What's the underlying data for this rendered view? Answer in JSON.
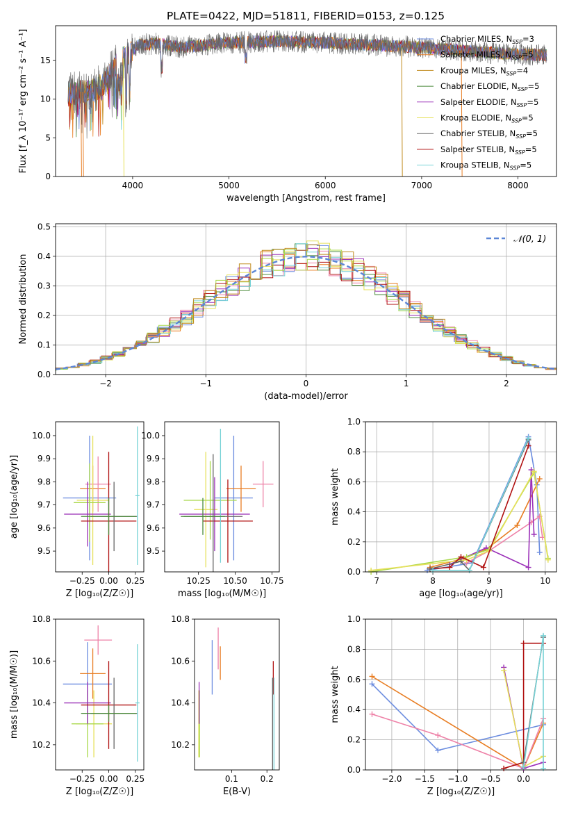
{
  "figure_title": "PLATE=0422, MJD=51811, FIBERID=0153, z=0.125",
  "palette": {
    "Chabrier MILES": "#6b8cdf",
    "Salpeter MILES": "#e87d22",
    "Kroupa MILES": "#c08a1c",
    "Chabrier ELODIE": "#4a8a3a",
    "Salpeter ELODIE": "#9b30b8",
    "Kroupa ELODIE": "#e6e05a",
    "Chabrier STELIB": "#666666",
    "Salpeter STELIB": "#b01010",
    "Kroupa STELIB": "#77d2d6",
    "extra_pink": "#ee82a8",
    "extra_lime": "#a8d84a",
    "gaussian": "#5b86d6"
  },
  "chart_data": [
    {
      "type": "line",
      "title": "PLATE=0422, MJD=51811, FIBERID=0153, z=0.125",
      "xlabel": "wavelength [Angstrom, rest frame]",
      "ylabel": "Flux [f_λ 10⁻¹⁷ erg cm⁻² s⁻¹ A⁻¹]",
      "xlim": [
        3200,
        8400
      ],
      "ylim": [
        0,
        19.5
      ],
      "xticks": [
        "4000",
        "5000",
        "6000",
        "7000",
        "8000"
      ],
      "yticks": [
        "0",
        "5",
        "10",
        "15"
      ],
      "legend_position": "right",
      "series": [
        {
          "name": "Chabrier MILES, N_SSP=3",
          "label_main": "Chabrier MILES, N",
          "label_sub": "SSP",
          "label_end": "=3"
        },
        {
          "name": "Salpeter MILES, N_SSP=5",
          "label_main": "Salpeter MILES, N",
          "label_sub": "SSP",
          "label_end": "=5"
        },
        {
          "name": "Kroupa MILES, N_SSP=4",
          "label_main": "Kroupa MILES, N",
          "label_sub": "SSP",
          "label_end": "=4"
        },
        {
          "name": "Chabrier ELODIE, N_SSP=5",
          "label_main": "Chabrier ELODIE, N",
          "label_sub": "SSP",
          "label_end": "=5"
        },
        {
          "name": "Salpeter ELODIE, N_SSP=5",
          "label_main": "Salpeter ELODIE, N",
          "label_sub": "SSP",
          "label_end": "=5"
        },
        {
          "name": "Kroupa ELODIE, N_SSP=5",
          "label_main": "Kroupa ELODIE, N",
          "label_sub": "SSP",
          "label_end": "=5"
        },
        {
          "name": "Chabrier STELIB, N_SSP=5",
          "label_main": "Chabrier STELIB, N",
          "label_sub": "SSP",
          "label_end": "=5"
        },
        {
          "name": "Salpeter STELIB, N_SSP=5",
          "label_main": "Salpeter STELIB, N",
          "label_sub": "SSP",
          "label_end": "=5"
        },
        {
          "name": "Kroupa STELIB, N_SSP=5",
          "label_main": "Kroupa STELIB, N",
          "label_sub": "SSP",
          "label_end": "=5"
        }
      ],
      "continuum": {
        "x": [
          3330,
          3450,
          3560,
          3700,
          3850,
          3950,
          4050,
          4250,
          4500,
          5000,
          5500,
          6000,
          6500,
          7000,
          7500,
          8000,
          8300
        ],
        "y": [
          10.5,
          11.0,
          10.8,
          12.0,
          14.8,
          15.6,
          17.0,
          17.2,
          16.7,
          17.3,
          17.5,
          17.3,
          17.0,
          16.7,
          16.2,
          15.8,
          15.7
        ]
      },
      "dropouts": [
        {
          "color": "Salpeter MILES",
          "x": 3470
        },
        {
          "color": "Salpeter MILES",
          "x": 3490
        },
        {
          "color": "Kroupa ELODIE",
          "x": 3910
        },
        {
          "color": "Kroupa MILES",
          "x": 6800
        },
        {
          "color": "Salpeter MILES",
          "x": 7420
        }
      ]
    },
    {
      "type": "bar",
      "xlabel": "(data-model)/error",
      "ylabel": "Normed distribution",
      "xlim": [
        -2.5,
        2.5
      ],
      "ylim": [
        0,
        0.51
      ],
      "xticks": [
        "−2",
        "−1",
        "0",
        "1",
        "2"
      ],
      "yticks": [
        "0.0",
        "0.1",
        "0.2",
        "0.3",
        "0.4",
        "0.5"
      ],
      "grid": true,
      "legend_position": "top-right",
      "legend_label": "𝒩(0, 1)",
      "bin_width": 0.114,
      "reference_curve": {
        "name": "gaussian",
        "mean": 0,
        "sigma": 1
      }
    },
    {
      "type": "scatter",
      "xlabel": "Z [log₁₀(Z/Z☉)]",
      "ylabel": "age  [log₁₀(age/yr)]",
      "xlim": [
        -0.5,
        0.33
      ],
      "ylim": [
        9.41,
        10.06
      ],
      "xticks": [
        "−0.25",
        "0.00",
        "0.25"
      ],
      "yticks": [
        "9.5",
        "9.6",
        "9.7",
        "9.8",
        "9.9",
        "10.0"
      ],
      "points": [
        {
          "model": "Chabrier MILES",
          "x": -0.18,
          "xerr": 0.25,
          "y": 9.73,
          "yerr": 0.27
        },
        {
          "model": "Salpeter MILES",
          "x": -0.15,
          "xerr": 0.12,
          "y": 9.77,
          "yerr": 0.1
        },
        {
          "model": "extra_pink",
          "x": -0.1,
          "xerr": 0.12,
          "y": 9.79,
          "yerr": 0.12
        },
        {
          "model": "Kroupa ELODIE",
          "x": -0.15,
          "xerr": 0.15,
          "y": 9.72,
          "yerr": 0.28
        },
        {
          "model": "extra_lime",
          "x": -0.18,
          "xerr": 0.15,
          "y": 9.71,
          "yerr": 0.17
        },
        {
          "model": "Salpeter ELODIE",
          "x": -0.2,
          "xerr": 0.22,
          "y": 9.66,
          "yerr": 0.14
        },
        {
          "model": "Salpeter STELIB",
          "x": 0.0,
          "xerr": 0.26,
          "y": 9.63,
          "yerr": 0.3
        },
        {
          "model": "Chabrier STELIB",
          "x": 0.05,
          "xerr": 0.22,
          "y": 9.65,
          "yerr": 0.15
        },
        {
          "model": "Kroupa STELIB",
          "x": 0.27,
          "xerr": 0.02,
          "y": 9.74,
          "yerr": 0.3
        },
        {
          "model": "Chabrier ELODIE",
          "x": 0.0,
          "xerr": 0.26,
          "y": 9.65,
          "yerr": 0.08
        }
      ]
    },
    {
      "type": "scatter",
      "xlabel": "mass [log₁₀(M/M☉)]",
      "ylabel": "",
      "xlim": [
        10.02,
        10.8
      ],
      "ylim": [
        9.41,
        10.06
      ],
      "xticks": [
        "10.25",
        "10.50",
        "10.75"
      ],
      "yticks": [
        "9.5",
        "9.6",
        "9.7",
        "9.8",
        "9.9",
        "10.0"
      ],
      "points": [
        {
          "model": "Chabrier MILES",
          "x": 10.49,
          "xerr": 0.13,
          "y": 9.73,
          "yerr": 0.27
        },
        {
          "model": "Salpeter MILES",
          "x": 10.54,
          "xerr": 0.1,
          "y": 9.77,
          "yerr": 0.1
        },
        {
          "model": "extra_pink",
          "x": 10.69,
          "xerr": 0.07,
          "y": 9.79,
          "yerr": 0.1
        },
        {
          "model": "Kroupa ELODIE",
          "x": 10.3,
          "xerr": 0.08,
          "y": 9.68,
          "yerr": 0.25
        },
        {
          "model": "extra_lime",
          "x": 10.33,
          "xerr": 0.18,
          "y": 9.72,
          "yerr": 0.17
        },
        {
          "model": "Salpeter ELODIE",
          "x": 10.36,
          "xerr": 0.24,
          "y": 9.66,
          "yerr": 0.16
        },
        {
          "model": "Salpeter STELIB",
          "x": 10.45,
          "xerr": 0.17,
          "y": 9.63,
          "yerr": 0.18
        },
        {
          "model": "Chabrier STELIB",
          "x": 10.35,
          "xerr": 0.2,
          "y": 9.65,
          "yerr": 0.27
        },
        {
          "model": "Kroupa STELIB",
          "x": 10.4,
          "xerr": 0.0,
          "y": 9.74,
          "yerr": 0.29
        },
        {
          "model": "Chabrier ELODIE",
          "x": 10.28,
          "xerr": 0.15,
          "y": 9.65,
          "yerr": 0.08
        }
      ]
    },
    {
      "type": "line",
      "xlabel": "age  [log₁₀(age/yr)]",
      "ylabel": "mass weight",
      "xlim": [
        6.8,
        10.2
      ],
      "ylim": [
        0,
        1.0
      ],
      "xticks": [
        "7",
        "8",
        "9",
        "10"
      ],
      "yticks": [
        "0.0",
        "0.2",
        "0.4",
        "0.6",
        "0.8",
        "1.0"
      ],
      "grid": true,
      "series": [
        {
          "model": "Chabrier MILES",
          "x": [
            7.9,
            8.7,
            9.7,
            9.85,
            9.9
          ],
          "y": [
            0.01,
            0.06,
            0.9,
            0.58,
            0.13
          ]
        },
        {
          "model": "Salpeter MILES",
          "x": [
            7.95,
            8.55,
            8.95,
            9.5,
            9.9
          ],
          "y": [
            0.03,
            0.09,
            0.15,
            0.31,
            0.62
          ]
        },
        {
          "model": "extra_pink",
          "x": [
            8.6,
            9.0,
            9.75,
            9.9,
            9.95
          ],
          "y": [
            0.06,
            0.14,
            0.33,
            0.37,
            0.23
          ]
        },
        {
          "model": "Salpeter ELODIE",
          "x": [
            8.3,
            8.95,
            9.7,
            9.75,
            9.8
          ],
          "y": [
            0.05,
            0.16,
            0.03,
            0.68,
            0.25
          ]
        },
        {
          "model": "extra_lime",
          "x": [
            6.9,
            8.6,
            9.0,
            9.8,
            10.05
          ],
          "y": [
            0.0,
            0.1,
            0.15,
            0.66,
            0.09
          ]
        },
        {
          "model": "Kroupa ELODIE",
          "x": [
            6.9,
            8.6,
            9.0,
            9.8,
            10.05
          ],
          "y": [
            0.01,
            0.08,
            0.14,
            0.67,
            0.08
          ]
        },
        {
          "model": "Salpeter STELIB",
          "x": [
            7.95,
            8.3,
            8.5,
            8.9,
            9.7
          ],
          "y": [
            0.02,
            0.03,
            0.1,
            0.03,
            0.84
          ]
        },
        {
          "model": "Chabrier STELIB",
          "x": [
            7.95,
            8.5,
            8.65,
            9.7
          ],
          "y": [
            0.02,
            0.07,
            0.01,
            0.88
          ]
        },
        {
          "model": "Kroupa STELIB",
          "x": [
            8.0,
            8.65,
            9.7
          ],
          "y": [
            0.01,
            0.01,
            0.89
          ]
        }
      ]
    },
    {
      "type": "scatter",
      "xlabel": "Z [log₁₀(Z/Z☉)]",
      "ylabel": "mass [log₁₀(M/M☉)]",
      "xlim": [
        -0.5,
        0.33
      ],
      "ylim": [
        10.08,
        10.8
      ],
      "xticks": [
        "−0.25",
        "0.00",
        "0.25"
      ],
      "yticks": [
        "10.2",
        "10.4",
        "10.6",
        "10.8"
      ],
      "points": [
        {
          "model": "Chabrier MILES",
          "x": -0.2,
          "xerr": 0.23,
          "y": 10.49,
          "yerr": 0.2
        },
        {
          "model": "Salpeter MILES",
          "x": -0.15,
          "xerr": 0.12,
          "y": 10.54,
          "yerr": 0.12
        },
        {
          "model": "extra_pink",
          "x": -0.1,
          "xerr": 0.13,
          "y": 10.7,
          "yerr": 0.07
        },
        {
          "model": "Kroupa ELODIE",
          "x": -0.14,
          "xerr": 0.17,
          "y": 10.3,
          "yerr": 0.16
        },
        {
          "model": "extra_lime",
          "x": -0.2,
          "xerr": 0.15,
          "y": 10.3,
          "yerr": 0.16
        },
        {
          "model": "Salpeter ELODIE",
          "x": -0.2,
          "xerr": 0.22,
          "y": 10.4,
          "yerr": 0.1
        },
        {
          "model": "Salpeter STELIB",
          "x": 0.0,
          "xerr": 0.26,
          "y": 10.39,
          "yerr": 0.21
        },
        {
          "model": "Chabrier STELIB",
          "x": 0.05,
          "xerr": 0.22,
          "y": 10.35,
          "yerr": 0.17
        },
        {
          "model": "Kroupa STELIB",
          "x": 0.27,
          "xerr": 0.02,
          "y": 10.4,
          "yerr": 0.28
        },
        {
          "model": "Chabrier ELODIE",
          "x": 0.0,
          "xerr": 0.26,
          "y": 10.35,
          "yerr": 0.04
        }
      ]
    },
    {
      "type": "scatter",
      "xlabel": "E(B-V)",
      "ylabel": "",
      "xlim": [
        -0.005,
        0.235
      ],
      "ylim": [
        10.08,
        10.8
      ],
      "xticks": [
        "0.1",
        "0.2"
      ],
      "yticks": [
        "10.2",
        "10.4",
        "10.6",
        "10.8"
      ],
      "points": [
        {
          "model": "Chabrier MILES",
          "y": 10.57,
          "yerr": 0.13,
          "x": 0.045
        },
        {
          "model": "Salpeter MILES",
          "y": 10.59,
          "yerr": 0.08,
          "x": 0.068
        },
        {
          "model": "extra_pink",
          "y": 10.66,
          "yerr": 0.1,
          "x": 0.062
        },
        {
          "model": "Kroupa ELODIE",
          "y": 10.3,
          "yerr": 0.16,
          "x": 0.007
        },
        {
          "model": "extra_lime",
          "y": 10.3,
          "yerr": 0.16,
          "x": 0.009
        },
        {
          "model": "Salpeter ELODIE",
          "y": 10.4,
          "yerr": 0.1,
          "x": 0.008
        },
        {
          "model": "Salpeter STELIB",
          "y": 10.52,
          "yerr": 0.08,
          "x": 0.218
        },
        {
          "model": "Chabrier STELIB",
          "y": 10.3,
          "yerr": 0.22,
          "x": 0.216
        },
        {
          "model": "Kroupa STELIB",
          "y": 10.3,
          "yerr": 0.22,
          "x": 0.22
        }
      ]
    },
    {
      "type": "line",
      "xlabel": "Z [log₁₀(Z/Z☉)]",
      "ylabel": "mass weight",
      "xlim": [
        -2.4,
        0.5
      ],
      "ylim": [
        0,
        1.0
      ],
      "xticks": [
        "−2.0",
        "−1.5",
        "−1.0",
        "−0.5",
        "0.0"
      ],
      "yticks": [
        "0.0",
        "0.2",
        "0.4",
        "0.6",
        "0.8",
        "1.0"
      ],
      "grid": true,
      "series": [
        {
          "model": "Chabrier MILES",
          "x": [
            -2.3,
            -1.3,
            0.3
          ],
          "y": [
            0.57,
            0.13,
            0.3
          ]
        },
        {
          "model": "Salpeter MILES",
          "x": [
            -2.3,
            0.0,
            0.3
          ],
          "y": [
            0.62,
            0.01,
            0.31
          ]
        },
        {
          "model": "extra_pink",
          "x": [
            -2.3,
            -1.3,
            0.0,
            0.3
          ],
          "y": [
            0.37,
            0.23,
            0.01,
            0.34
          ]
        },
        {
          "model": "Salpeter ELODIE",
          "x": [
            -0.3,
            0.0,
            0.3
          ],
          "y": [
            0.68,
            0.01,
            0.05
          ]
        },
        {
          "model": "Kroupa ELODIE",
          "x": [
            -0.3,
            0.0,
            0.3
          ],
          "y": [
            0.66,
            0.02,
            0.09
          ]
        },
        {
          "model": "Salpeter STELIB",
          "x": [
            -0.3,
            0.0,
            0.0,
            0.3
          ],
          "y": [
            0.01,
            0.05,
            0.84,
            0.84
          ]
        },
        {
          "model": "Chabrier STELIB",
          "x": [
            0.0,
            0.3
          ],
          "y": [
            0.05,
            0.88
          ]
        },
        {
          "model": "Kroupa STELIB",
          "x": [
            0.0,
            0.3,
            0.3
          ],
          "y": [
            0.02,
            0.89,
            0.01
          ]
        }
      ]
    }
  ]
}
